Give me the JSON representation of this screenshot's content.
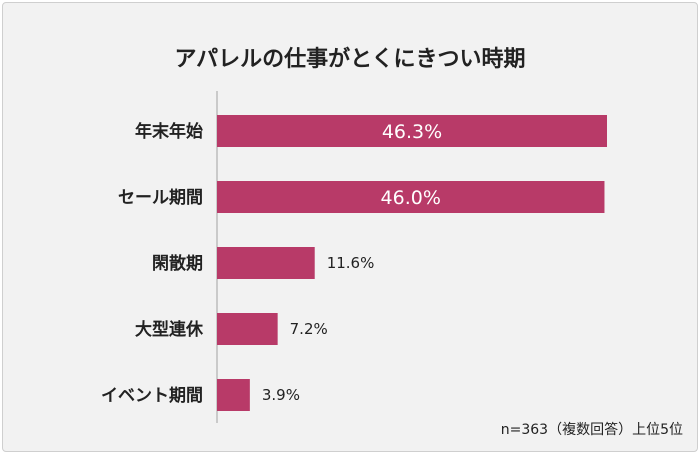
{
  "chart_data": {
    "type": "bar",
    "orientation": "horizontal",
    "title": "アパレルの仕事がとくにきつい時期",
    "categories": [
      "年末年始",
      "セール期間",
      "閑散期",
      "大型連休",
      "イベント期間"
    ],
    "values": [
      46.3,
      46.0,
      11.6,
      7.2,
      3.9
    ],
    "value_labels": [
      "46.3%",
      "46.0%",
      "11.6%",
      "7.2%",
      "3.9%"
    ],
    "xlim": [
      0,
      46.3
    ],
    "grid": false,
    "note": "n=363（複数回答）上位5位",
    "colors": {
      "bar": "#b83a68"
    }
  }
}
